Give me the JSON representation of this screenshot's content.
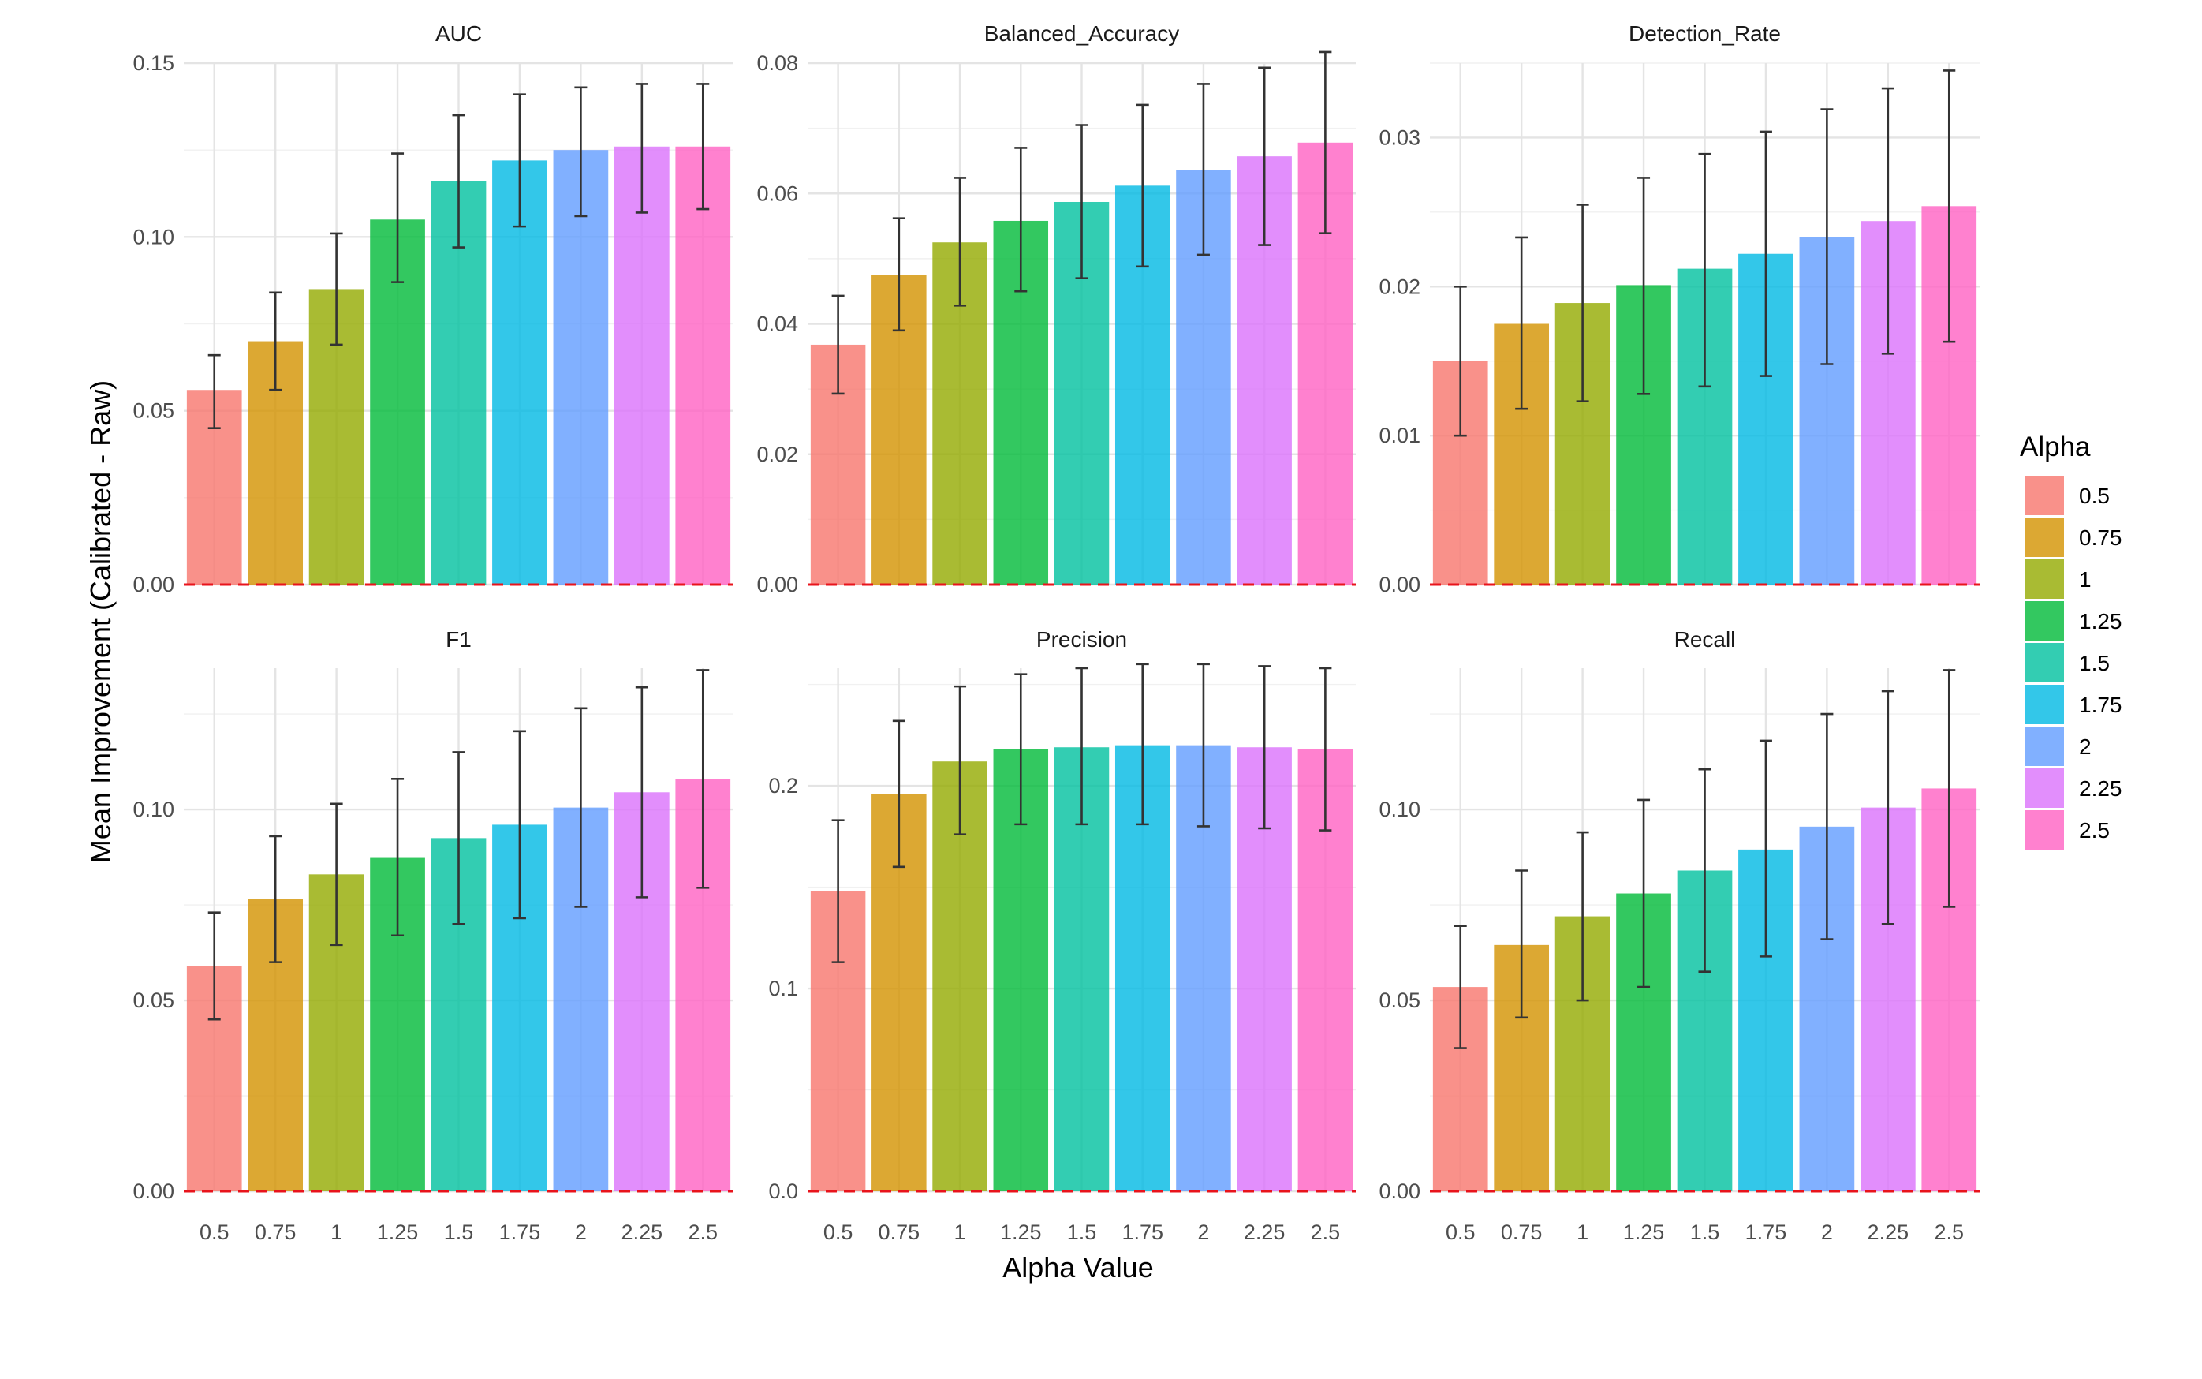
{
  "chart_data": {
    "type": "bar",
    "facet_layout": "2x3 grid, free y scales",
    "xlabel": "Alpha Value",
    "ylabel": "Mean Improvement (Calibrated - Raw)",
    "categories": [
      "0.5",
      "0.75",
      "1",
      "1.25",
      "1.5",
      "1.75",
      "2",
      "2.25",
      "2.5"
    ],
    "reference_line": {
      "y": 0,
      "style": "dashed",
      "color": "#e8141c"
    },
    "legend": {
      "title": "Alpha",
      "placement": "right",
      "labels": [
        "0.5",
        "0.75",
        "1",
        "1.25",
        "1.5",
        "1.75",
        "2",
        "2.25",
        "2.5"
      ],
      "colors": [
        "#f8766d",
        "#d39200",
        "#93aa00",
        "#00ba38",
        "#00c19f",
        "#00b9e3",
        "#619cff",
        "#db72fb",
        "#ff61c3"
      ]
    },
    "facets": [
      {
        "title": "AUC",
        "ylim": [
          0,
          0.15
        ],
        "yticks": [
          0,
          0.05,
          0.1,
          0.15
        ],
        "ytick_labels": [
          "0.00",
          "0.05",
          "0.10",
          "0.15"
        ],
        "values": [
          0.056,
          0.07,
          0.085,
          0.105,
          0.116,
          0.122,
          0.125,
          0.126,
          0.126
        ],
        "err_low": [
          0.045,
          0.056,
          0.069,
          0.087,
          0.097,
          0.103,
          0.106,
          0.107,
          0.108
        ],
        "err_high": [
          0.066,
          0.084,
          0.101,
          0.124,
          0.135,
          0.141,
          0.143,
          0.144,
          0.144
        ]
      },
      {
        "title": "Balanced_Accuracy",
        "ylim": [
          0,
          0.08
        ],
        "yticks": [
          0,
          0.02,
          0.04,
          0.06,
          0.08
        ],
        "ytick_labels": [
          "0.00",
          "0.02",
          "0.04",
          "0.06",
          "0.08"
        ],
        "values": [
          0.0368,
          0.0475,
          0.0525,
          0.0558,
          0.0587,
          0.0612,
          0.0636,
          0.0657,
          0.0678
        ],
        "err_low": [
          0.0293,
          0.039,
          0.0428,
          0.045,
          0.047,
          0.0488,
          0.0506,
          0.0521,
          0.0539
        ],
        "err_high": [
          0.0443,
          0.0562,
          0.0624,
          0.067,
          0.0705,
          0.0736,
          0.0768,
          0.0793,
          0.0817
        ]
      },
      {
        "title": "Detection_Rate",
        "ylim": [
          0,
          0.035
        ],
        "yticks": [
          0,
          0.01,
          0.02,
          0.03
        ],
        "ytick_labels": [
          "0.00",
          "0.01",
          "0.02",
          "0.03"
        ],
        "values": [
          0.015,
          0.0175,
          0.0189,
          0.0201,
          0.0212,
          0.0222,
          0.0233,
          0.0244,
          0.0254
        ],
        "err_low": [
          0.01,
          0.0118,
          0.0123,
          0.0128,
          0.0133,
          0.014,
          0.0148,
          0.0155,
          0.0163
        ],
        "err_high": [
          0.02,
          0.0233,
          0.0255,
          0.0273,
          0.0289,
          0.0304,
          0.0319,
          0.0333,
          0.0345
        ]
      },
      {
        "title": "F1",
        "ylim": [
          0,
          0.137
        ],
        "yticks": [
          0,
          0.05,
          0.1
        ],
        "ytick_labels": [
          "0.00",
          "0.05",
          "0.10"
        ],
        "values": [
          0.059,
          0.0765,
          0.083,
          0.0875,
          0.0925,
          0.096,
          0.1005,
          0.1045,
          0.108
        ],
        "err_low": [
          0.045,
          0.06,
          0.0645,
          0.067,
          0.07,
          0.0715,
          0.0745,
          0.077,
          0.0795
        ],
        "err_high": [
          0.073,
          0.093,
          0.1015,
          0.108,
          0.115,
          0.1205,
          0.1265,
          0.132,
          0.1365
        ]
      },
      {
        "title": "Precision",
        "ylim": [
          0,
          0.258
        ],
        "yticks": [
          0,
          0.1,
          0.2
        ],
        "ytick_labels": [
          "0.0",
          "0.1",
          "0.2"
        ],
        "values": [
          0.148,
          0.196,
          0.212,
          0.218,
          0.219,
          0.22,
          0.22,
          0.219,
          0.218
        ],
        "err_low": [
          0.113,
          0.16,
          0.176,
          0.181,
          0.181,
          0.181,
          0.18,
          0.179,
          0.178
        ],
        "err_high": [
          0.183,
          0.232,
          0.249,
          0.255,
          0.258,
          0.26,
          0.26,
          0.259,
          0.258
        ]
      },
      {
        "title": "Recall",
        "ylim": [
          0,
          0.137
        ],
        "yticks": [
          0,
          0.05,
          0.1
        ],
        "ytick_labels": [
          "0.00",
          "0.05",
          "0.10"
        ],
        "values": [
          0.0535,
          0.0645,
          0.072,
          0.078,
          0.084,
          0.0895,
          0.0955,
          0.1005,
          0.1055
        ],
        "err_low": [
          0.0375,
          0.0455,
          0.05,
          0.0535,
          0.0575,
          0.0615,
          0.066,
          0.07,
          0.0745
        ],
        "err_high": [
          0.0695,
          0.084,
          0.094,
          0.1025,
          0.1105,
          0.118,
          0.125,
          0.131,
          0.1365
        ]
      }
    ]
  }
}
